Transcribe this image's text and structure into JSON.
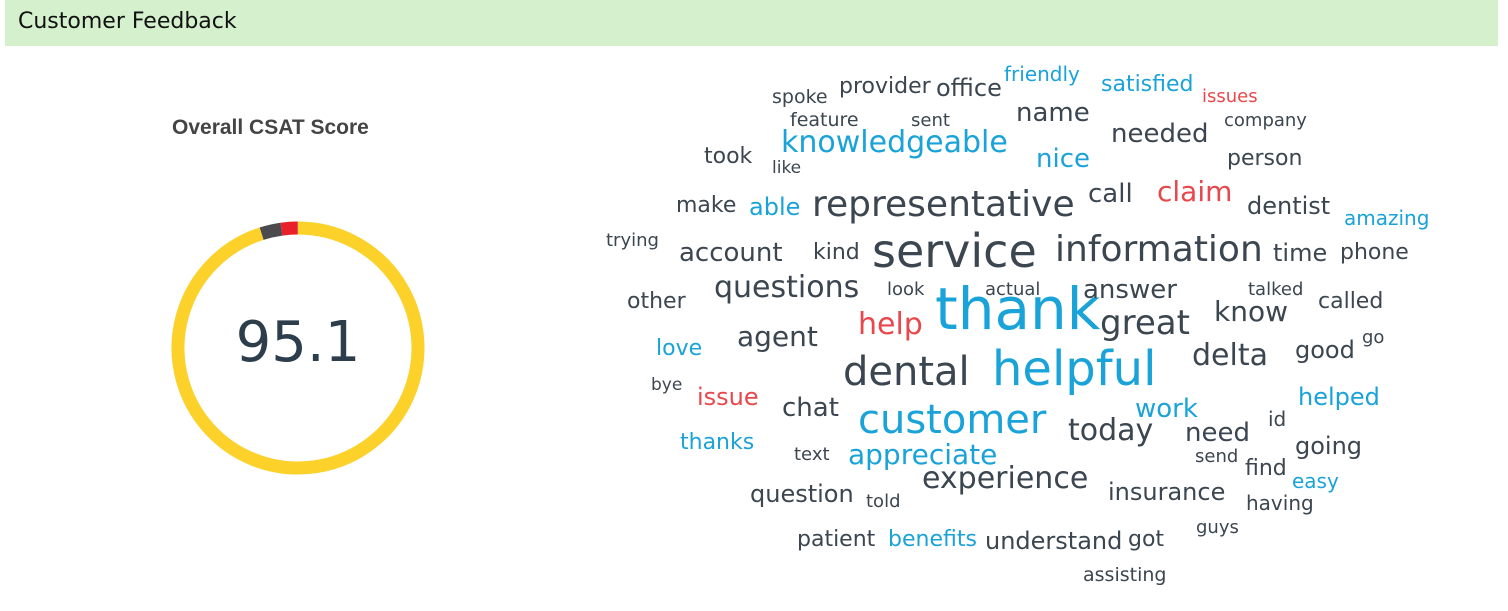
{
  "header": {
    "title": "Customer Feedback"
  },
  "csat": {
    "title": "Overall CSAT Score",
    "score": "95.1",
    "gauge": {
      "primary_percent": 95.1,
      "colors": {
        "primary": "#fcd22a",
        "dark": "#4a4a4f",
        "red": "#e8202a"
      }
    }
  },
  "word_cloud": {
    "colors": {
      "dark": "#3b4650",
      "blue": "#1aa3d9",
      "red": "#e8474b"
    },
    "words": [
      {
        "text": "thank",
        "color": "blue"
      },
      {
        "text": "service",
        "color": "dark"
      },
      {
        "text": "helpful",
        "color": "blue"
      },
      {
        "text": "customer",
        "color": "blue"
      },
      {
        "text": "information",
        "color": "dark"
      },
      {
        "text": "dental",
        "color": "dark"
      },
      {
        "text": "representative",
        "color": "dark"
      },
      {
        "text": "great",
        "color": "dark"
      },
      {
        "text": "knowledgeable",
        "color": "blue"
      },
      {
        "text": "help",
        "color": "red"
      },
      {
        "text": "delta",
        "color": "dark"
      },
      {
        "text": "questions",
        "color": "dark"
      },
      {
        "text": "today",
        "color": "dark"
      },
      {
        "text": "experience",
        "color": "dark"
      },
      {
        "text": "appreciate",
        "color": "blue"
      },
      {
        "text": "agent",
        "color": "dark"
      },
      {
        "text": "claim",
        "color": "red"
      },
      {
        "text": "know",
        "color": "dark"
      },
      {
        "text": "account",
        "color": "dark"
      },
      {
        "text": "chat",
        "color": "dark"
      },
      {
        "text": "need",
        "color": "dark"
      },
      {
        "text": "work",
        "color": "blue"
      },
      {
        "text": "answer",
        "color": "dark"
      },
      {
        "text": "call",
        "color": "dark"
      },
      {
        "text": "needed",
        "color": "dark"
      },
      {
        "text": "name",
        "color": "dark"
      },
      {
        "text": "nice",
        "color": "blue"
      },
      {
        "text": "dentist",
        "color": "dark"
      },
      {
        "text": "time",
        "color": "dark"
      },
      {
        "text": "insurance",
        "color": "dark"
      },
      {
        "text": "good",
        "color": "dark"
      },
      {
        "text": "able",
        "color": "blue"
      },
      {
        "text": "office",
        "color": "dark"
      },
      {
        "text": "satisfied",
        "color": "blue"
      },
      {
        "text": "provider",
        "color": "dark"
      },
      {
        "text": "person",
        "color": "dark"
      },
      {
        "text": "phone",
        "color": "dark"
      },
      {
        "text": "helped",
        "color": "blue"
      },
      {
        "text": "going",
        "color": "dark"
      },
      {
        "text": "understand",
        "color": "dark"
      },
      {
        "text": "question",
        "color": "dark"
      },
      {
        "text": "called",
        "color": "dark"
      },
      {
        "text": "issue",
        "color": "red"
      },
      {
        "text": "thanks",
        "color": "blue"
      },
      {
        "text": "love",
        "color": "blue"
      },
      {
        "text": "benefits",
        "color": "blue"
      },
      {
        "text": "patient",
        "color": "dark"
      },
      {
        "text": "got",
        "color": "dark"
      },
      {
        "text": "took",
        "color": "dark"
      },
      {
        "text": "make",
        "color": "dark"
      },
      {
        "text": "kind",
        "color": "dark"
      },
      {
        "text": "amazing",
        "color": "blue"
      },
      {
        "text": "find",
        "color": "dark"
      },
      {
        "text": "easy",
        "color": "blue"
      },
      {
        "text": "other",
        "color": "dark"
      },
      {
        "text": "having",
        "color": "dark"
      },
      {
        "text": "friendly",
        "color": "blue"
      },
      {
        "text": "issues",
        "color": "red"
      },
      {
        "text": "feature",
        "color": "dark"
      },
      {
        "text": "spoke",
        "color": "dark"
      },
      {
        "text": "company",
        "color": "dark"
      },
      {
        "text": "talked",
        "color": "dark"
      },
      {
        "text": "trying",
        "color": "dark"
      },
      {
        "text": "actual",
        "color": "dark"
      },
      {
        "text": "look",
        "color": "dark"
      },
      {
        "text": "sent",
        "color": "dark"
      },
      {
        "text": "guys",
        "color": "dark"
      },
      {
        "text": "assisting",
        "color": "dark"
      },
      {
        "text": "text",
        "color": "dark"
      },
      {
        "text": "send",
        "color": "dark"
      },
      {
        "text": "told",
        "color": "dark"
      },
      {
        "text": "bye",
        "color": "dark"
      },
      {
        "text": "id",
        "color": "dark"
      },
      {
        "text": "like",
        "color": "dark"
      },
      {
        "text": "go",
        "color": "dark"
      }
    ]
  }
}
